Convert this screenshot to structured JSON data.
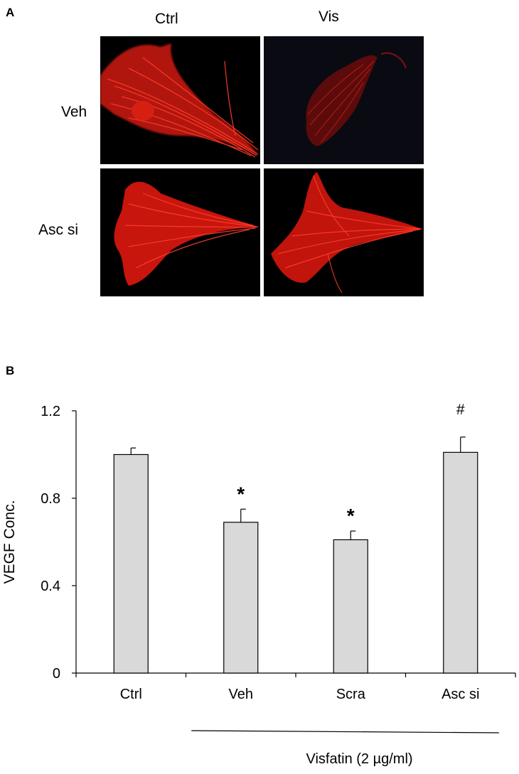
{
  "panel_a": {
    "letter": "A",
    "columns": [
      "Ctrl",
      "Vis"
    ],
    "rows": [
      "Veh",
      "Asc si"
    ],
    "image_color": "#e01a12",
    "image_background": "#000000"
  },
  "panel_b": {
    "letter": "B",
    "bracket_label": "Visfatin (2 µg/ml)"
  },
  "chart_data": {
    "type": "bar",
    "categories": [
      "Ctrl",
      "Veh",
      "Scra",
      "Asc si"
    ],
    "values": [
      1.0,
      0.69,
      0.61,
      1.01
    ],
    "errors": [
      0.03,
      0.06,
      0.04,
      0.07
    ],
    "annotations": [
      "",
      "*",
      "*",
      "#"
    ],
    "xlabel": "",
    "ylabel": "VEGF Conc.",
    "ylim": [
      0,
      1.2
    ],
    "yticks": [
      "0",
      "0.4",
      "0.8",
      "1.2"
    ],
    "bar_color": "#d9d9d9",
    "grid": false
  }
}
